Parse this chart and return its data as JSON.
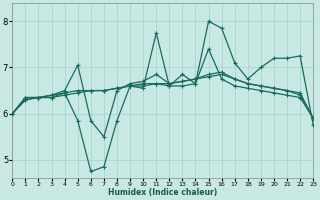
{
  "xlabel": "Humidex (Indice chaleur)",
  "xlim": [
    0,
    23
  ],
  "ylim": [
    4.6,
    8.4
  ],
  "yticks": [
    5,
    6,
    7,
    8
  ],
  "xticks": [
    0,
    1,
    2,
    3,
    4,
    5,
    6,
    7,
    8,
    9,
    10,
    11,
    12,
    13,
    14,
    15,
    16,
    17,
    18,
    19,
    20,
    21,
    22,
    23
  ],
  "bg_color": "#c8e8e4",
  "grid_color": "#a8d4cf",
  "line_color": "#1a6b5e",
  "series": [
    {
      "x": [
        0,
        1,
        2,
        3,
        4,
        5,
        6,
        7,
        8,
        9,
        10,
        11,
        12,
        13,
        14,
        15,
        16,
        17,
        18,
        19,
        20,
        21,
        22,
        23
      ],
      "y": [
        6.0,
        6.35,
        6.35,
        6.35,
        6.45,
        5.85,
        4.75,
        4.85,
        5.85,
        6.6,
        6.55,
        7.75,
        6.6,
        6.85,
        6.65,
        8.0,
        7.85,
        7.1,
        6.75,
        7.0,
        7.2,
        7.2,
        7.25,
        5.75
      ]
    },
    {
      "x": [
        0,
        1,
        2,
        3,
        4,
        5,
        6,
        7,
        8,
        9,
        10,
        11,
        12,
        13,
        14,
        15,
        16,
        17,
        18,
        19,
        20,
        21,
        22,
        23
      ],
      "y": [
        6.0,
        6.35,
        6.35,
        6.4,
        6.5,
        7.05,
        5.85,
        5.5,
        6.5,
        6.65,
        6.7,
        6.85,
        6.65,
        6.7,
        6.75,
        6.85,
        6.9,
        6.75,
        6.65,
        6.6,
        6.55,
        6.5,
        6.4,
        5.9
      ]
    },
    {
      "x": [
        0,
        1,
        2,
        3,
        4,
        5,
        6,
        7,
        8,
        9,
        10,
        11,
        12,
        13,
        14,
        15,
        16,
        17,
        18,
        19,
        20,
        21,
        22,
        23
      ],
      "y": [
        6.0,
        6.3,
        6.35,
        6.4,
        6.45,
        6.5,
        6.5,
        6.5,
        6.55,
        6.6,
        6.6,
        6.65,
        6.6,
        6.6,
        6.65,
        7.4,
        6.75,
        6.6,
        6.55,
        6.5,
        6.45,
        6.4,
        6.35,
        5.9
      ]
    },
    {
      "x": [
        0,
        1,
        2,
        3,
        4,
        5,
        6,
        7,
        8,
        9,
        10,
        11,
        12,
        13,
        14,
        15,
        16,
        17,
        18,
        19,
        20,
        21,
        22,
        23
      ],
      "y": [
        6.0,
        6.3,
        6.35,
        6.35,
        6.4,
        6.45,
        6.5,
        6.5,
        6.55,
        6.6,
        6.65,
        6.65,
        6.65,
        6.7,
        6.75,
        6.8,
        6.85,
        6.75,
        6.65,
        6.6,
        6.55,
        6.5,
        6.45,
        5.9
      ]
    }
  ]
}
